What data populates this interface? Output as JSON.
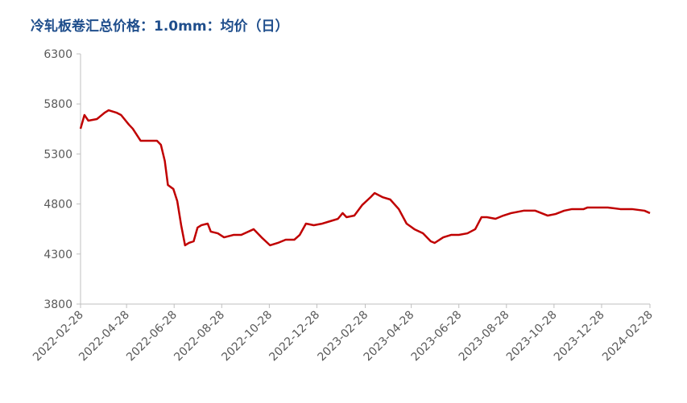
{
  "chart_data": {
    "type": "line",
    "title": "冷轧板卷汇总价格：1.0mm：均价（日）",
    "x": [
      "2022-02-28",
      "2022-03-05",
      "2022-03-10",
      "2022-03-21",
      "2022-03-31",
      "2022-04-05",
      "2022-04-15",
      "2022-04-21",
      "2022-05-01",
      "2022-05-06",
      "2022-05-16",
      "2022-05-27",
      "2022-06-06",
      "2022-06-11",
      "2022-06-16",
      "2022-06-20",
      "2022-06-27",
      "2022-07-02",
      "2022-07-07",
      "2022-07-12",
      "2022-07-17",
      "2022-07-23",
      "2022-07-28",
      "2022-08-02",
      "2022-08-10",
      "2022-08-14",
      "2022-08-23",
      "2022-08-31",
      "2022-09-12",
      "2022-09-22",
      "2022-10-08",
      "2022-10-18",
      "2022-10-29",
      "2022-11-08",
      "2022-11-18",
      "2022-11-29",
      "2022-12-06",
      "2022-12-14",
      "2022-12-24",
      "2023-01-04",
      "2023-01-14",
      "2023-01-24",
      "2023-01-30",
      "2023-02-04",
      "2023-02-14",
      "2023-02-24",
      "2023-03-07",
      "2023-03-12",
      "2023-03-22",
      "2023-04-01",
      "2023-04-12",
      "2023-04-22",
      "2023-05-02",
      "2023-05-13",
      "2023-05-23",
      "2023-05-28",
      "2023-06-08",
      "2023-06-18",
      "2023-06-28",
      "2023-07-09",
      "2023-07-19",
      "2023-07-27",
      "2023-08-03",
      "2023-08-14",
      "2023-08-24",
      "2023-09-03",
      "2023-09-19",
      "2023-10-04",
      "2023-10-20",
      "2023-10-30",
      "2023-11-10",
      "2023-11-20",
      "2023-12-05",
      "2023-12-10",
      "2023-12-21",
      "2024-01-05",
      "2024-01-21",
      "2024-02-05",
      "2024-02-21",
      "2024-02-28"
    ],
    "series": [
      {
        "color": "#c00000",
        "values": [
          5552,
          5689,
          5633,
          5649,
          5713,
          5737,
          5713,
          5689,
          5593,
          5552,
          5432,
          5432,
          5432,
          5392,
          5231,
          4990,
          4950,
          4829,
          4588,
          4387,
          4411,
          4427,
          4564,
          4588,
          4604,
          4524,
          4507,
          4467,
          4491,
          4491,
          4548,
          4467,
          4387,
          4411,
          4443,
          4443,
          4491,
          4604,
          4588,
          4604,
          4628,
          4652,
          4709,
          4668,
          4684,
          4789,
          4869,
          4909,
          4869,
          4845,
          4749,
          4604,
          4548,
          4507,
          4427,
          4411,
          4467,
          4491,
          4491,
          4507,
          4548,
          4668,
          4668,
          4652,
          4684,
          4709,
          4733,
          4733,
          4684,
          4700,
          4733,
          4749,
          4749,
          4765,
          4765,
          4765,
          4749,
          4749,
          4733,
          4709
        ]
      }
    ],
    "ylim": [
      3800,
      6300
    ],
    "yticks": [
      3800,
      4300,
      4800,
      5300,
      5800,
      6300
    ],
    "xlim": [
      "2022-02-28",
      "2024-02-28"
    ],
    "xticks": [
      "2022-02-28",
      "2022-04-28",
      "2022-06-28",
      "2022-08-28",
      "2022-10-28",
      "2022-12-28",
      "2023-02-28",
      "2023-04-28",
      "2023-06-28",
      "2023-08-28",
      "2023-10-28",
      "2023-12-28",
      "2024-02-28"
    ]
  }
}
